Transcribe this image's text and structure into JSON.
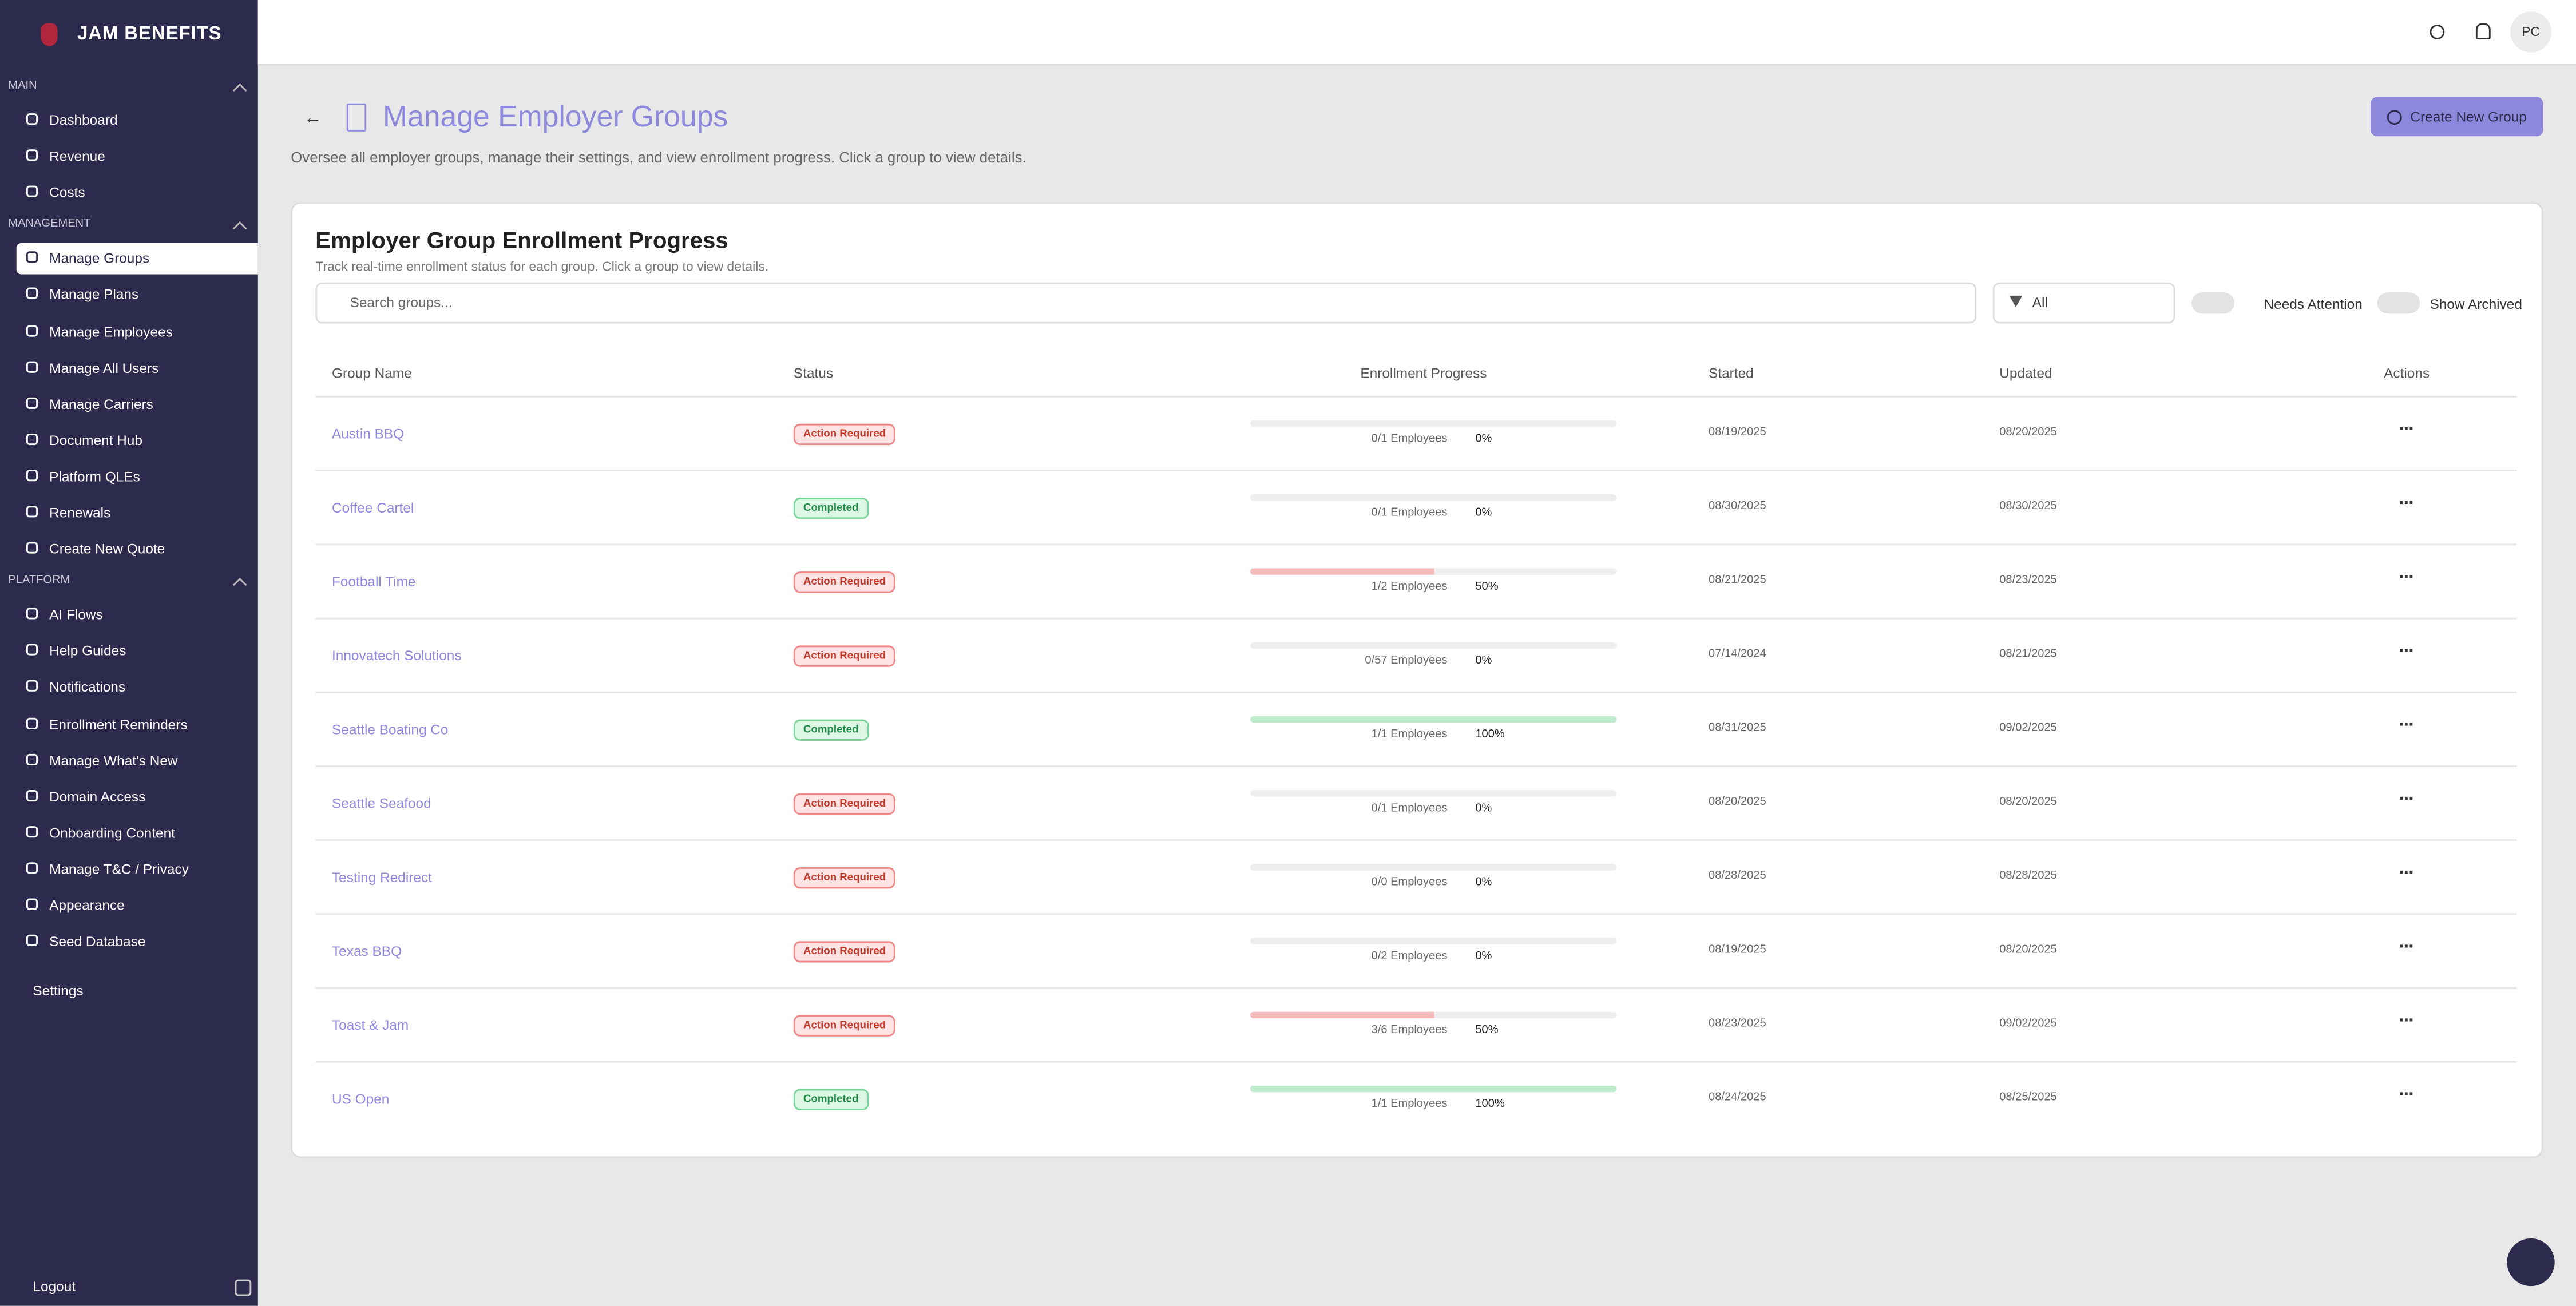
{
  "brand": "JAM BENEFITS",
  "sidebar": {
    "sections": [
      {
        "title": "MAIN",
        "items": [
          "Dashboard",
          "Revenue",
          "Costs"
        ]
      },
      {
        "title": "MANAGEMENT",
        "items": [
          "Manage Groups",
          "Manage Plans",
          "Manage Employees",
          "Manage All Users",
          "Manage Carriers",
          "Document Hub",
          "Platform QLEs",
          "Renewals",
          "Create New Quote"
        ]
      },
      {
        "title": "PLATFORM",
        "items": [
          "AI Flows",
          "Help Guides",
          "Notifications",
          "Enrollment Reminders",
          "Manage What's New",
          "Domain Access",
          "Onboarding Content",
          "Manage T&C / Privacy",
          "Appearance",
          "Seed Database"
        ]
      }
    ],
    "active": [
      1,
      0
    ],
    "settings": "Settings",
    "logout": "Logout"
  },
  "header": {
    "avatar": "PC"
  },
  "page": {
    "title": "Manage Employer Groups",
    "description": "Oversee all employer groups, manage their settings, and view enrollment progress. Click a group to view details.",
    "create_button": "Create New Group"
  },
  "card": {
    "title": "Employer Group Enrollment Progress",
    "subtitle": "Track real-time enrollment status for each group. Click a group to view details.",
    "search_placeholder": "Search groups...",
    "filter": "All",
    "toggles": [
      "Needs Attention",
      "Show Archived"
    ]
  },
  "table": {
    "columns": [
      "Group Name",
      "Status",
      "Enrollment Progress",
      "Started",
      "Updated",
      "Actions"
    ],
    "rows": [
      {
        "name": "Austin BBQ",
        "status": "Action Required",
        "tone": "danger",
        "employees": "0/1 Employees",
        "progress": {
          "value": 0,
          "label": "0%"
        },
        "started": "08/19/2025",
        "updated": "08/20/2025"
      },
      {
        "name": "Coffee Cartel",
        "status": "Completed",
        "tone": "success",
        "employees": "0/1 Employees",
        "progress": {
          "value": 0,
          "label": "0%"
        },
        "started": "08/30/2025",
        "updated": "08/30/2025"
      },
      {
        "name": "Football Time",
        "status": "Action Required",
        "tone": "danger",
        "employees": "1/2 Employees",
        "progress": {
          "value": 50,
          "label": "50%"
        },
        "started": "08/21/2025",
        "updated": "08/23/2025"
      },
      {
        "name": "Innovatech Solutions",
        "status": "Action Required",
        "tone": "danger",
        "employees": "0/57 Employees",
        "progress": {
          "value": 0,
          "label": "0%"
        },
        "started": "07/14/2024",
        "updated": "08/21/2025"
      },
      {
        "name": "Seattle Boating Co",
        "status": "Completed",
        "tone": "success",
        "employees": "1/1 Employees",
        "progress": {
          "value": 100,
          "label": "100%"
        },
        "started": "08/31/2025",
        "updated": "09/02/2025"
      },
      {
        "name": "Seattle Seafood",
        "status": "Action Required",
        "tone": "danger",
        "employees": "0/1 Employees",
        "progress": {
          "value": 0,
          "label": "0%"
        },
        "started": "08/20/2025",
        "updated": "08/20/2025"
      },
      {
        "name": "Testing Redirect",
        "status": "Action Required",
        "tone": "danger",
        "employees": "0/0 Employees",
        "progress": {
          "value": 0,
          "label": "0%"
        },
        "started": "08/28/2025",
        "updated": "08/28/2025"
      },
      {
        "name": "Texas BBQ",
        "status": "Action Required",
        "tone": "danger",
        "employees": "0/2 Employees",
        "progress": {
          "value": 0,
          "label": "0%"
        },
        "started": "08/19/2025",
        "updated": "08/20/2025"
      },
      {
        "name": "Toast & Jam",
        "status": "Action Required",
        "tone": "danger",
        "employees": "3/6 Employees",
        "progress": {
          "value": 50,
          "label": "50%"
        },
        "started": "08/23/2025",
        "updated": "09/02/2025"
      },
      {
        "name": "US Open",
        "status": "Completed",
        "tone": "success",
        "employees": "1/1 Employees",
        "progress": {
          "value": 100,
          "label": "100%"
        },
        "started": "08/24/2025",
        "updated": "08/25/2025"
      }
    ]
  }
}
